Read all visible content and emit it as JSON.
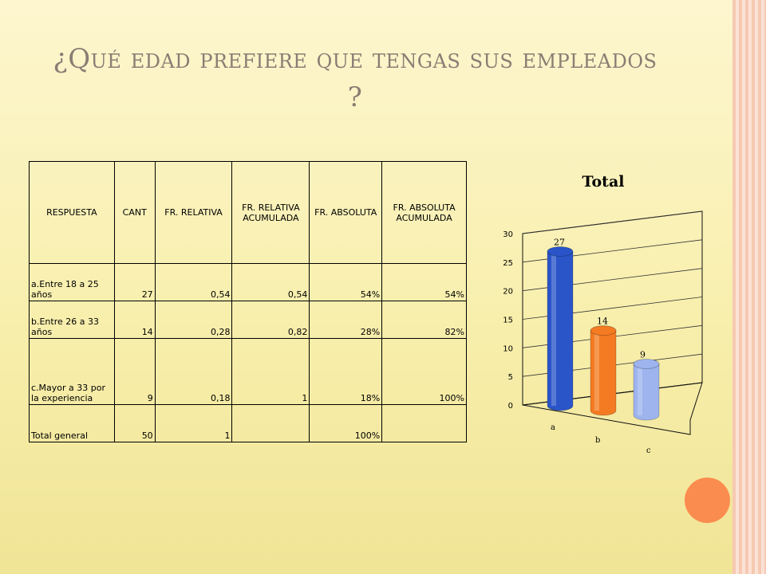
{
  "title": "¿Qué edad prefiere que tengas sus empleados ?",
  "table": {
    "headers": [
      "RESPUESTA",
      "CANT",
      "FR. RELATIVA",
      "FR. RELATIVA ACUMULADA",
      "FR. ABSOLUTA",
      "FR. ABSOLUTA ACUMULADA"
    ],
    "rows": [
      [
        "a.Entre 18 a 25 años",
        "27",
        "0,54",
        "0,54",
        "54%",
        "54%"
      ],
      [
        "b.Entre 26 a 33 años",
        "14",
        "0,28",
        "0,82",
        "28%",
        "82%"
      ],
      [
        "c.Mayor a 33 por la experiencia",
        "9",
        "0,18",
        "1",
        "18%",
        "100%"
      ],
      [
        "Total general",
        "50",
        "1",
        "",
        "100%",
        ""
      ]
    ]
  },
  "chart_data": {
    "type": "bar",
    "title": "Total",
    "categories": [
      "a",
      "b",
      "c"
    ],
    "values": [
      27,
      14,
      9
    ],
    "ylim": [
      0,
      30
    ],
    "yticks": [
      "0",
      "5",
      "10",
      "15",
      "20",
      "25",
      "30"
    ],
    "data_labels": [
      "27",
      "14",
      "9"
    ],
    "colors": [
      "#2a55c8",
      "#f47b22",
      "#9db4ee"
    ]
  }
}
